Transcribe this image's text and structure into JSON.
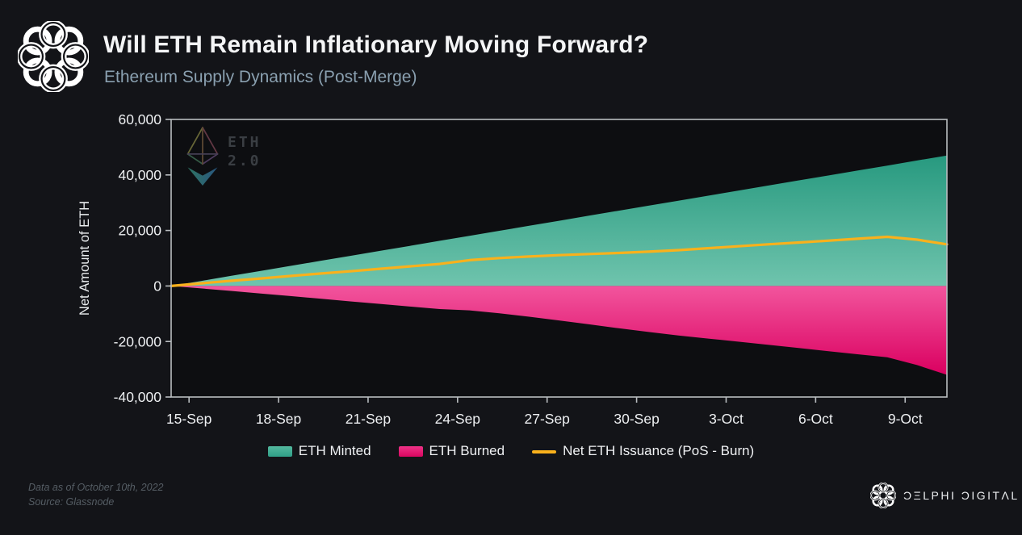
{
  "header": {
    "title": "Will ETH Remain Inflationary Moving Forward?",
    "subtitle": "Ethereum Supply Dynamics (Post-Merge)"
  },
  "watermark": {
    "line1": "ETH",
    "line2": "2.0"
  },
  "chart_data": {
    "type": "area",
    "title": "Will ETH Remain Inflationary Moving Forward?",
    "subtitle": "Ethereum Supply Dynamics (Post-Merge)",
    "xlabel": "",
    "ylabel": "Net Amount of ETH",
    "ylim": [
      -40000,
      60000
    ],
    "grid": false,
    "legend_position": "bottom",
    "ytick_values": [
      60000,
      40000,
      20000,
      0,
      -20000,
      -40000
    ],
    "ytick_labels": [
      "60,000",
      "40,000",
      "20,000",
      "0",
      "-20,000",
      "-40,000"
    ],
    "xtick_labels": [
      "15-Sep",
      "18-Sep",
      "21-Sep",
      "24-Sep",
      "27-Sep",
      "30-Sep",
      "3-Oct",
      "6-Oct",
      "9-Oct"
    ],
    "dates": [
      "14-Sep",
      "15-Sep",
      "16-Sep",
      "17-Sep",
      "18-Sep",
      "19-Sep",
      "20-Sep",
      "21-Sep",
      "22-Sep",
      "23-Sep",
      "24-Sep",
      "25-Sep",
      "26-Sep",
      "27-Sep",
      "28-Sep",
      "29-Sep",
      "30-Sep",
      "1-Oct",
      "2-Oct",
      "3-Oct",
      "4-Oct",
      "5-Oct",
      "6-Oct",
      "7-Oct",
      "8-Oct",
      "9-Oct",
      "10-Oct"
    ],
    "series": [
      {
        "name": "ETH Minted",
        "type": "area",
        "color_top": "#27997f",
        "color_bottom": "#6fc4ad",
        "legend_color": "#4cb59b",
        "values": [
          0,
          1810,
          3620,
          5420,
          7230,
          9040,
          10850,
          12650,
          14460,
          16270,
          18080,
          19880,
          21690,
          23500,
          25310,
          27120,
          28920,
          30730,
          32540,
          34350,
          36150,
          37960,
          39770,
          41580,
          43380,
          45190,
          47000
        ]
      },
      {
        "name": "ETH Burned",
        "type": "area",
        "color_top": "#f2559d",
        "color_bottom": "#da0060",
        "legend_color": "#e81b74",
        "values": [
          0,
          -860,
          -1770,
          -2720,
          -3630,
          -4560,
          -5550,
          -6450,
          -7410,
          -8320,
          -8780,
          -9830,
          -11090,
          -12400,
          -13810,
          -15220,
          -16570,
          -17830,
          -18940,
          -20050,
          -21150,
          -22310,
          -23470,
          -24580,
          -25680,
          -28490,
          -32000
        ]
      },
      {
        "name": "Net ETH Issuance (PoS - Burn)",
        "type": "line",
        "color": "#f9b11c",
        "values": [
          0,
          950,
          1850,
          2700,
          3600,
          4480,
          5300,
          6200,
          7050,
          7950,
          9300,
          10050,
          10600,
          11100,
          11500,
          11900,
          12350,
          12900,
          13600,
          14300,
          15000,
          15650,
          16300,
          17000,
          17700,
          16700,
          15000
        ]
      }
    ]
  },
  "footer": {
    "data_as_of": "Data as of October 10th, 2022",
    "source": "Source: Glassnode"
  },
  "brand": {
    "name": "ƆΞLPHI ƆIGITΛL"
  }
}
